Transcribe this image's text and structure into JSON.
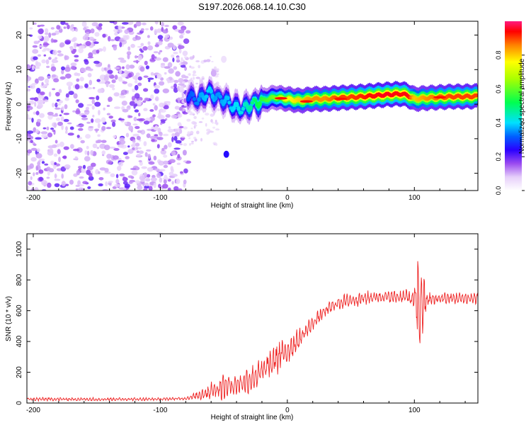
{
  "title": "S197.2026.068.14.10.C30",
  "chart_data": [
    {
      "type": "heatmap",
      "xlabel": "Height of straight line (km)",
      "ylabel": "Frequency (Hz)",
      "xlim": [
        -205,
        150
      ],
      "ylim": [
        -25,
        24
      ],
      "xticks": [
        -200,
        -100,
        0,
        100
      ],
      "xtick_labels": [
        "-200",
        "-100",
        "0",
        "100"
      ],
      "yticks": [
        -20,
        -10,
        0,
        10,
        20
      ],
      "ytick_labels": [
        "-20",
        "-10",
        "0",
        "10",
        "20"
      ],
      "colorbar": {
        "label": "Normalized spectral amplitude",
        "range": [
          0,
          1
        ],
        "ticks": [
          0.0,
          0.2,
          0.4,
          0.6,
          0.8
        ],
        "tick_labels": [
          "0.0",
          "0.2",
          "0.4",
          "0.6",
          "0.8"
        ]
      },
      "noise_region_x": [
        -205,
        -78
      ],
      "ridge": [
        {
          "x": -78,
          "freq": 2.5,
          "amp": 0.3
        },
        {
          "x": -70,
          "freq": 1.0,
          "amp": 0.35
        },
        {
          "x": -62,
          "freq": 3.5,
          "amp": 0.4
        },
        {
          "x": -55,
          "freq": 2.0,
          "amp": 0.35
        },
        {
          "x": -48,
          "freq": 1.0,
          "amp": 0.38
        },
        {
          "x": -42,
          "freq": -1.0,
          "amp": 0.4
        },
        {
          "x": -35,
          "freq": -1.5,
          "amp": 0.42
        },
        {
          "x": -28,
          "freq": 0.0,
          "amp": 0.48
        },
        {
          "x": -20,
          "freq": 1.0,
          "amp": 0.55
        },
        {
          "x": -10,
          "freq": 2.0,
          "amp": 0.62
        },
        {
          "x": 0,
          "freq": 1.5,
          "amp": 0.75
        },
        {
          "x": 10,
          "freq": 1.0,
          "amp": 0.8
        },
        {
          "x": 20,
          "freq": 1.5,
          "amp": 0.85
        },
        {
          "x": 30,
          "freq": 1.5,
          "amp": 0.85
        },
        {
          "x": 40,
          "freq": 1.8,
          "amp": 0.9
        },
        {
          "x": 50,
          "freq": 2.0,
          "amp": 0.9
        },
        {
          "x": 60,
          "freq": 2.2,
          "amp": 0.92
        },
        {
          "x": 70,
          "freq": 2.5,
          "amp": 0.95
        },
        {
          "x": 80,
          "freq": 2.8,
          "amp": 0.95
        },
        {
          "x": 90,
          "freq": 3.0,
          "amp": 0.95
        },
        {
          "x": 95,
          "freq": 2.5,
          "amp": 0.95
        },
        {
          "x": 100,
          "freq": 1.5,
          "amp": 0.8
        },
        {
          "x": 110,
          "freq": 1.8,
          "amp": 0.85
        },
        {
          "x": 120,
          "freq": 2.0,
          "amp": 0.88
        },
        {
          "x": 130,
          "freq": 2.2,
          "amp": 0.9
        },
        {
          "x": 140,
          "freq": 2.2,
          "amp": 0.9
        },
        {
          "x": 150,
          "freq": 2.3,
          "amp": 0.9
        }
      ],
      "blobs": [
        {
          "x": -48,
          "freq": -14.5,
          "amp": 0.25
        },
        {
          "x": -58,
          "freq": 9.0,
          "amp": 0.1
        },
        {
          "x": -50,
          "freq": 13.0,
          "amp": 0.05
        }
      ]
    },
    {
      "type": "line",
      "xlabel": "Height of straight line (km)",
      "ylabel": "SNR (10 * v/v)",
      "xlim": [
        -205,
        150
      ],
      "ylim": [
        0,
        1100
      ],
      "xticks": [
        -200,
        -100,
        0,
        100
      ],
      "xtick_labels": [
        "-200",
        "-100",
        "0",
        "100"
      ],
      "yticks": [
        0,
        200,
        400,
        600,
        800,
        1000
      ],
      "ytick_labels": [
        "0",
        "200",
        "400",
        "600",
        "800",
        "1000"
      ],
      "series": [
        {
          "name": "SNR",
          "color": "#ee2222",
          "envelope": [
            {
              "x": -205,
              "mean": 25,
              "amp": 12
            },
            {
              "x": -150,
              "mean": 25,
              "amp": 12
            },
            {
              "x": -100,
              "mean": 25,
              "amp": 10
            },
            {
              "x": -80,
              "mean": 30,
              "amp": 10
            },
            {
              "x": -70,
              "mean": 50,
              "amp": 30
            },
            {
              "x": -60,
              "mean": 80,
              "amp": 70
            },
            {
              "x": -50,
              "mean": 110,
              "amp": 90
            },
            {
              "x": -40,
              "mean": 120,
              "amp": 70
            },
            {
              "x": -30,
              "mean": 150,
              "amp": 90
            },
            {
              "x": -20,
              "mean": 200,
              "amp": 90
            },
            {
              "x": -10,
              "mean": 280,
              "amp": 120
            },
            {
              "x": 0,
              "mean": 340,
              "amp": 100
            },
            {
              "x": 10,
              "mean": 420,
              "amp": 70
            },
            {
              "x": 20,
              "mean": 520,
              "amp": 50
            },
            {
              "x": 30,
              "mean": 600,
              "amp": 45
            },
            {
              "x": 40,
              "mean": 650,
              "amp": 45
            },
            {
              "x": 50,
              "mean": 670,
              "amp": 50
            },
            {
              "x": 60,
              "mean": 680,
              "amp": 50
            },
            {
              "x": 70,
              "mean": 690,
              "amp": 40
            },
            {
              "x": 80,
              "mean": 690,
              "amp": 40
            },
            {
              "x": 90,
              "mean": 690,
              "amp": 45
            },
            {
              "x": 95,
              "mean": 690,
              "amp": 50
            },
            {
              "x": 100,
              "mean": 660,
              "amp": 120
            },
            {
              "x": 103,
              "mean": 650,
              "amp": 400
            },
            {
              "x": 106,
              "mean": 640,
              "amp": 250
            },
            {
              "x": 110,
              "mean": 670,
              "amp": 60
            },
            {
              "x": 120,
              "mean": 680,
              "amp": 40
            },
            {
              "x": 150,
              "mean": 680,
              "amp": 40
            }
          ]
        }
      ]
    }
  ]
}
